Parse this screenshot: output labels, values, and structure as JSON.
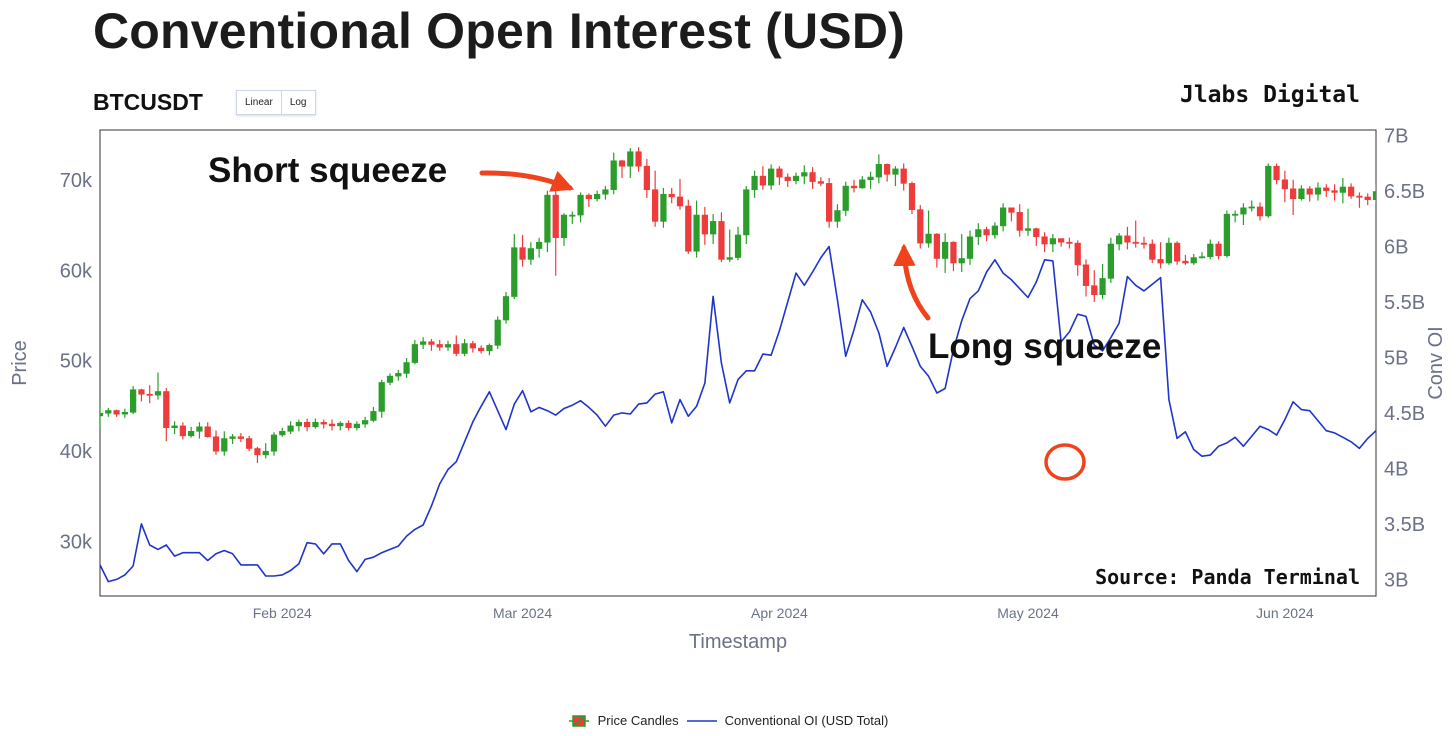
{
  "header": {
    "title": "Conventional Open Interest (USD)",
    "symbol": "BTCUSDT",
    "scale_buttons": [
      "Linear",
      "Log"
    ],
    "brand": "Jlabs Digital"
  },
  "colors": {
    "up": "#2a9d2a",
    "down": "#ee3b3b",
    "oi_line": "#1f35c9",
    "annotation": "#f0421c",
    "axis_text": "#6b7288"
  },
  "annotations": {
    "short_squeeze": "Short squeeze",
    "long_squeeze": "Long squeeze",
    "source": "Source: Panda Terminal"
  },
  "chart_data": {
    "type": "candlestick+line",
    "xlabel": "Timestamp",
    "ylabel": "Price",
    "y2label": "Conv OI",
    "x_start": "2024-01-10",
    "x_end": "2024-06-12",
    "x_ticks": [
      {
        "date": "2024-02-01",
        "label": "Feb 2024"
      },
      {
        "date": "2024-03-01",
        "label": "Mar 2024"
      },
      {
        "date": "2024-04-01",
        "label": "Apr 2024"
      },
      {
        "date": "2024-05-01",
        "label": "May 2024"
      },
      {
        "date": "2024-06-01",
        "label": "Jun 2024"
      }
    ],
    "ylim": [
      24000,
      75500
    ],
    "y_ticks": [
      {
        "v": 30000,
        "label": "30k"
      },
      {
        "v": 40000,
        "label": "40k"
      },
      {
        "v": 50000,
        "label": "50k"
      },
      {
        "v": 60000,
        "label": "60k"
      },
      {
        "v": 70000,
        "label": "70k"
      }
    ],
    "y2lim": [
      2850000000,
      7050000000
    ],
    "y2_ticks": [
      {
        "v": 3000000000,
        "label": "3B"
      },
      {
        "v": 3500000000,
        "label": "3.5B"
      },
      {
        "v": 4000000000,
        "label": "4B"
      },
      {
        "v": 4500000000,
        "label": "4.5B"
      },
      {
        "v": 5000000000,
        "label": "5B"
      },
      {
        "v": 5500000000,
        "label": "5.5B"
      },
      {
        "v": 6000000000,
        "label": "6B"
      },
      {
        "v": 6500000000,
        "label": "6.5B"
      },
      {
        "v": 7000000000,
        "label": "7B"
      }
    ],
    "series": [
      {
        "name": "Price Candles",
        "kind": "candlestick",
        "close": [
          44200,
          44500,
          44100,
          44300,
          46800,
          46300,
          46200,
          46600,
          42600,
          42800,
          41700,
          42200,
          42700,
          41600,
          40000,
          41400,
          41600,
          41400,
          40300,
          39600,
          40000,
          41800,
          42200,
          42800,
          43200,
          42700,
          43200,
          43000,
          42800,
          43100,
          42600,
          43000,
          43400,
          44400,
          47600,
          48300,
          48600,
          49800,
          51800,
          52100,
          51800,
          51500,
          51800,
          50800,
          51900,
          51400,
          51100,
          51700,
          54500,
          57100,
          62500,
          61200,
          62400,
          63100,
          68300,
          63600,
          66100,
          66100,
          68300,
          67900,
          68400,
          68900,
          72100,
          71500,
          73100,
          71500,
          68900,
          65400,
          68400,
          68100,
          67100,
          62100,
          66100,
          64000,
          65400,
          61200,
          61400,
          63900,
          68900,
          70400,
          69400,
          71200,
          70300,
          69900,
          70400,
          70800,
          69800,
          69600,
          65400,
          66600,
          69300,
          69100,
          70000,
          70300,
          71700,
          70600,
          71200,
          69600,
          66700,
          63000,
          64000,
          61300,
          63100,
          60800,
          61300,
          63700,
          64500,
          63900,
          64900,
          66900,
          66400,
          64400,
          64600,
          63700,
          62900,
          63500,
          63100,
          63000,
          60600,
          58300,
          57300,
          59100,
          62900,
          63800,
          63100,
          63000,
          62900,
          61200,
          60800,
          63000,
          61000,
          60800,
          61400,
          61500,
          62900,
          61600,
          66200,
          66200,
          66900,
          67000,
          66000,
          71500,
          70000,
          69000,
          67900,
          69000,
          68400,
          69100,
          68800,
          68600,
          69200,
          68200,
          68100,
          67800,
          68700,
          68500,
          69400,
          71000,
          71300,
          70900,
          69100,
          68700
        ],
        "high": [
          44900,
          44800,
          44600,
          44700,
          47200,
          46900,
          47300,
          48700,
          47000,
          43300,
          43200,
          42700,
          43200,
          43200,
          42300,
          42200,
          41900,
          42000,
          41700,
          40500,
          40900,
          42100,
          42600,
          43300,
          43500,
          43600,
          43600,
          43500,
          43500,
          43300,
          43400,
          43300,
          43800,
          44900,
          47900,
          48600,
          49000,
          50300,
          52300,
          52600,
          52400,
          52300,
          52200,
          52800,
          52400,
          52200,
          51700,
          51900,
          54900,
          57600,
          64000,
          63900,
          63100,
          63600,
          68800,
          69200,
          66300,
          66500,
          68600,
          68500,
          68800,
          69300,
          73000,
          72200,
          73500,
          73600,
          72300,
          71000,
          69100,
          69100,
          70100,
          67800,
          67700,
          67000,
          66200,
          66400,
          64500,
          64800,
          69300,
          71000,
          71500,
          71700,
          71500,
          70700,
          70800,
          71600,
          71400,
          70300,
          70200,
          67300,
          69800,
          70000,
          70400,
          70900,
          72800,
          71800,
          71500,
          71800,
          69800,
          67200,
          66600,
          64100,
          64100,
          63200,
          64000,
          64400,
          65200,
          64800,
          65300,
          67400,
          66900,
          67300,
          66800,
          64700,
          64200,
          64000,
          63500,
          63600,
          63300,
          61200,
          60000,
          60700,
          63600,
          64100,
          64800,
          65500,
          63700,
          63400,
          63100,
          63600,
          63200,
          61700,
          61800,
          62000,
          63400,
          63200,
          66600,
          66600,
          67400,
          67700,
          67500,
          71800,
          71800,
          71000,
          70000,
          69400,
          69300,
          69700,
          69500,
          69500,
          70200,
          69600,
          68600,
          68500,
          69500,
          69000,
          69800,
          71500,
          71800,
          71900,
          71800,
          69400
        ],
        "low": [
          42600,
          43800,
          43800,
          43700,
          44100,
          45500,
          45300,
          45700,
          41100,
          41900,
          41300,
          41500,
          41400,
          41500,
          39600,
          39500,
          40800,
          41000,
          40000,
          38700,
          39200,
          39500,
          41600,
          41900,
          42200,
          42200,
          42500,
          42500,
          42300,
          42300,
          42300,
          42300,
          42600,
          43200,
          43700,
          47300,
          47800,
          48100,
          49600,
          51300,
          51100,
          51100,
          51100,
          50500,
          50500,
          50900,
          50800,
          50600,
          51300,
          54100,
          56800,
          60400,
          60600,
          61400,
          62000,
          59400,
          62700,
          65100,
          65300,
          67000,
          67600,
          67800,
          68400,
          70200,
          70200,
          70900,
          68000,
          64800,
          64700,
          67400,
          66700,
          61800,
          61400,
          62800,
          62900,
          60900,
          60900,
          61100,
          62900,
          68000,
          68900,
          68900,
          69400,
          69200,
          69500,
          69500,
          69000,
          69300,
          64700,
          64700,
          66000,
          68600,
          69000,
          69000,
          69600,
          69800,
          69300,
          68800,
          66200,
          62400,
          62500,
          60300,
          59700,
          59900,
          59800,
          60600,
          62800,
          63200,
          63500,
          64300,
          65400,
          63700,
          63800,
          62700,
          62000,
          62000,
          62600,
          62400,
          59400,
          57100,
          56500,
          56800,
          58600,
          62200,
          62300,
          62500,
          62400,
          60800,
          60200,
          60600,
          60600,
          60600,
          60600,
          61300,
          61200,
          61200,
          61400,
          65300,
          65000,
          66500,
          65500,
          65800,
          69500,
          67500,
          66100,
          67700,
          67600,
          67700,
          68100,
          67700,
          67400,
          67900,
          66900,
          67200,
          67400,
          68000,
          67700,
          68500,
          70300,
          70300,
          68400,
          68100
        ]
      },
      {
        "name": "Conventional OI (USD Total)",
        "kind": "line",
        "values": [
          3130000000,
          2980000000,
          3000000000,
          3040000000,
          3120000000,
          3500000000,
          3310000000,
          3270000000,
          3310000000,
          3210000000,
          3240000000,
          3240000000,
          3240000000,
          3170000000,
          3230000000,
          3260000000,
          3230000000,
          3130000000,
          3130000000,
          3130000000,
          3030000000,
          3030000000,
          3040000000,
          3080000000,
          3140000000,
          3330000000,
          3320000000,
          3230000000,
          3320000000,
          3320000000,
          3170000000,
          3070000000,
          3180000000,
          3200000000,
          3240000000,
          3270000000,
          3300000000,
          3390000000,
          3450000000,
          3490000000,
          3660000000,
          3860000000,
          3990000000,
          4060000000,
          4240000000,
          4420000000,
          4560000000,
          4690000000,
          4520000000,
          4350000000,
          4580000000,
          4700000000,
          4510000000,
          4550000000,
          4520000000,
          4480000000,
          4540000000,
          4570000000,
          4610000000,
          4550000000,
          4480000000,
          4380000000,
          4480000000,
          4500000000,
          4490000000,
          4580000000,
          4590000000,
          4670000000,
          4690000000,
          4410000000,
          4620000000,
          4470000000,
          4560000000,
          4770000000,
          5550000000,
          4950000000,
          4590000000,
          4800000000,
          4880000000,
          4880000000,
          5030000000,
          5020000000,
          5240000000,
          5500000000,
          5760000000,
          5650000000,
          5770000000,
          5900000000,
          6000000000,
          5520000000,
          5010000000,
          5250000000,
          5520000000,
          5410000000,
          5220000000,
          4920000000,
          5090000000,
          5270000000,
          5100000000,
          4920000000,
          4830000000,
          4680000000,
          4720000000,
          5070000000,
          5330000000,
          5530000000,
          5600000000,
          5770000000,
          5880000000,
          5760000000,
          5700000000,
          5620000000,
          5540000000,
          5680000000,
          5880000000,
          5870000000,
          5140000000,
          5230000000,
          5390000000,
          5370000000,
          5110000000,
          5060000000,
          5180000000,
          5310000000,
          5730000000,
          5650000000,
          5600000000,
          5660000000,
          5720000000,
          4620000000,
          4270000000,
          4330000000,
          4170000000,
          4110000000,
          4120000000,
          4200000000,
          4230000000,
          4280000000,
          4200000000,
          4290000000,
          4380000000,
          4350000000,
          4300000000,
          4440000000,
          4600000000,
          4530000000,
          4520000000,
          4430000000,
          4340000000,
          4320000000,
          4280000000,
          4240000000,
          4180000000,
          4270000000,
          4340000000,
          3980000000,
          3980000000,
          4540000000,
          4640000000,
          4710000000,
          4660000000,
          4530000000,
          4400000000,
          4340000000,
          4190000000,
          4270000000,
          4380000000,
          4300000000,
          4270000000,
          4240000000,
          4300000000,
          4340000000,
          4190000000,
          4490000000,
          4330000000,
          4180000000,
          4970000000,
          4800000000,
          4850000000,
          5000000000,
          5000000000,
          4980000000,
          5030000000,
          5560000000,
          5470000000,
          4810000000,
          4800000000,
          4930000000,
          4900000000,
          4970000000,
          4850000000,
          4910000000,
          4930000000,
          4960000000,
          5090000000,
          5000000000,
          5140000000,
          5080000000,
          5110000000,
          5180000000,
          5150000000,
          5130000000,
          5240000000,
          5440000000,
          5730000000,
          5870000000,
          5840000000,
          5780000000,
          5710000000,
          5710000000
        ]
      }
    ],
    "legend": [
      {
        "label": "Price Candles",
        "kind": "candle"
      },
      {
        "label": "Conventional OI (USD Total)",
        "kind": "line"
      }
    ],
    "legend_position": "bottom-center",
    "grid": false
  }
}
